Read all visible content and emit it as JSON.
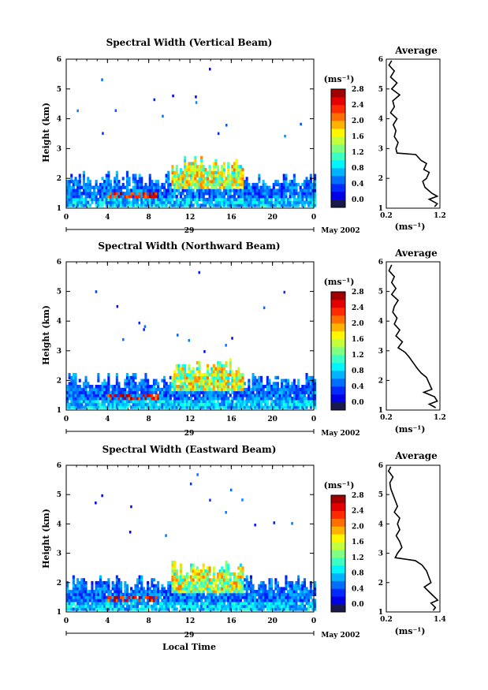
{
  "figure": {
    "x_axis_label": "Local Time",
    "date_label": "May 2002",
    "day_label": "29",
    "unit_label": "(ms⁻¹)",
    "avg_title": "Average"
  },
  "chart_data": [
    {
      "type": "heatmap",
      "title": "Spectral Width (Vertical Beam)",
      "xlabel": "",
      "ylabel": "Height (km)",
      "xlim": [
        0,
        24
      ],
      "ylim": [
        1,
        6
      ],
      "x_ticks": [
        "0",
        "4",
        "8",
        "12",
        "16",
        "20",
        "0"
      ],
      "y_ticks": [
        "1",
        "2",
        "3",
        "4",
        "5",
        "6"
      ],
      "colorbar_ticks": [
        "0.0",
        "0.4",
        "0.8",
        "1.2",
        "1.6",
        "2.0",
        "2.4",
        "2.8"
      ],
      "colorbar_range": [
        0,
        3.0
      ],
      "profile": {
        "title": "Average",
        "xlabel": "(ms⁻¹)",
        "xlim": [
          0.2,
          1.2
        ],
        "x_ticks": [
          "0.2",
          "1.2"
        ],
        "y_ticks": [
          "1",
          "2",
          "3",
          "4",
          "5",
          "6"
        ],
        "points": [
          [
            0.3,
            5.95
          ],
          [
            0.25,
            5.8
          ],
          [
            0.35,
            5.6
          ],
          [
            0.28,
            5.4
          ],
          [
            0.4,
            5.2
          ],
          [
            0.3,
            5.0
          ],
          [
            0.45,
            4.8
          ],
          [
            0.32,
            4.6
          ],
          [
            0.35,
            4.4
          ],
          [
            0.28,
            4.2
          ],
          [
            0.4,
            4.0
          ],
          [
            0.33,
            3.8
          ],
          [
            0.38,
            3.6
          ],
          [
            0.35,
            3.4
          ],
          [
            0.42,
            3.2
          ],
          [
            0.38,
            3.0
          ],
          [
            0.4,
            2.85
          ],
          [
            0.75,
            2.8
          ],
          [
            0.85,
            2.6
          ],
          [
            0.95,
            2.5
          ],
          [
            0.9,
            2.3
          ],
          [
            1.0,
            2.2
          ],
          [
            0.95,
            2.0
          ],
          [
            0.88,
            1.9
          ],
          [
            0.92,
            1.7
          ],
          [
            1.05,
            1.5
          ],
          [
            1.15,
            1.4
          ],
          [
            1.0,
            1.3
          ],
          [
            1.15,
            1.15
          ],
          [
            1.1,
            1.05
          ]
        ]
      }
    },
    {
      "type": "heatmap",
      "title": "Spectral Width (Northward Beam)",
      "xlabel": "",
      "ylabel": "Height (km)",
      "xlim": [
        0,
        24
      ],
      "ylim": [
        1,
        6
      ],
      "x_ticks": [
        "0",
        "4",
        "8",
        "12",
        "16",
        "20",
        "0"
      ],
      "y_ticks": [
        "1",
        "2",
        "3",
        "4",
        "5",
        "6"
      ],
      "colorbar_ticks": [
        "0.0",
        "0.4",
        "0.8",
        "1.2",
        "1.6",
        "2.0",
        "2.4",
        "2.8"
      ],
      "colorbar_range": [
        0,
        3.0
      ],
      "profile": {
        "title": "Average",
        "xlabel": "(ms⁻¹)",
        "xlim": [
          0.2,
          1.2
        ],
        "x_ticks": [
          "0.2",
          "1.2"
        ],
        "y_ticks": [
          "1",
          "2",
          "3",
          "4",
          "5",
          "6"
        ],
        "points": [
          [
            0.3,
            5.9
          ],
          [
            0.25,
            5.7
          ],
          [
            0.35,
            5.5
          ],
          [
            0.3,
            5.3
          ],
          [
            0.38,
            5.1
          ],
          [
            0.3,
            4.9
          ],
          [
            0.42,
            4.7
          ],
          [
            0.35,
            4.5
          ],
          [
            0.32,
            4.3
          ],
          [
            0.4,
            4.1
          ],
          [
            0.35,
            3.9
          ],
          [
            0.45,
            3.7
          ],
          [
            0.38,
            3.5
          ],
          [
            0.5,
            3.3
          ],
          [
            0.42,
            3.1
          ],
          [
            0.55,
            2.95
          ],
          [
            0.62,
            2.8
          ],
          [
            0.7,
            2.6
          ],
          [
            0.78,
            2.4
          ],
          [
            0.85,
            2.25
          ],
          [
            0.95,
            2.1
          ],
          [
            1.0,
            1.9
          ],
          [
            1.05,
            1.7
          ],
          [
            0.9,
            1.6
          ],
          [
            1.1,
            1.45
          ],
          [
            1.15,
            1.3
          ],
          [
            1.0,
            1.2
          ],
          [
            1.12,
            1.08
          ]
        ]
      }
    },
    {
      "type": "heatmap",
      "title": "Spectral Width (Eastward Beam)",
      "xlabel": "Local Time",
      "ylabel": "Height (km)",
      "xlim": [
        0,
        24
      ],
      "ylim": [
        1,
        6
      ],
      "x_ticks": [
        "0",
        "4",
        "8",
        "12",
        "16",
        "20",
        "0"
      ],
      "y_ticks": [
        "1",
        "2",
        "3",
        "4",
        "5",
        "6"
      ],
      "colorbar_ticks": [
        "0.0",
        "0.4",
        "0.8",
        "1.2",
        "1.6",
        "2.0",
        "2.4",
        "2.8"
      ],
      "colorbar_range": [
        0,
        3.0
      ],
      "profile": {
        "title": "Average",
        "xlabel": "(ms⁻¹)",
        "xlim": [
          0.2,
          1.4
        ],
        "x_ticks": [
          "0.2",
          "1.4"
        ],
        "y_ticks": [
          "1",
          "2",
          "3",
          "4",
          "5",
          "6"
        ],
        "points": [
          [
            0.3,
            5.95
          ],
          [
            0.25,
            5.8
          ],
          [
            0.35,
            5.6
          ],
          [
            0.28,
            5.4
          ],
          [
            0.3,
            5.2
          ],
          [
            0.35,
            5.0
          ],
          [
            0.4,
            4.8
          ],
          [
            0.45,
            4.6
          ],
          [
            0.38,
            4.4
          ],
          [
            0.5,
            4.2
          ],
          [
            0.45,
            4.0
          ],
          [
            0.5,
            3.8
          ],
          [
            0.42,
            3.6
          ],
          [
            0.5,
            3.4
          ],
          [
            0.55,
            3.2
          ],
          [
            0.45,
            3.0
          ],
          [
            0.4,
            2.85
          ],
          [
            0.85,
            2.75
          ],
          [
            1.0,
            2.6
          ],
          [
            1.1,
            2.4
          ],
          [
            1.15,
            2.2
          ],
          [
            1.2,
            2.0
          ],
          [
            1.05,
            1.85
          ],
          [
            1.15,
            1.7
          ],
          [
            1.25,
            1.55
          ],
          [
            1.35,
            1.4
          ],
          [
            1.2,
            1.3
          ],
          [
            1.3,
            1.15
          ],
          [
            1.25,
            1.05
          ]
        ]
      }
    }
  ]
}
